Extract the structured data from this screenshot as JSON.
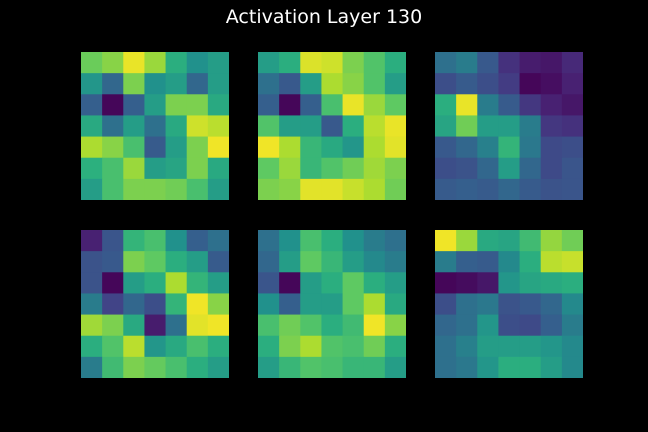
{
  "chart_data": {
    "type": "heatmap",
    "title": "Activation Layer 130",
    "colormap": "viridis",
    "vmin": 0,
    "vmax": 1,
    "background": "#000000",
    "panels": [
      {
        "name": "activation-map-1",
        "values": [
          [
            0.77,
            0.82,
            0.97,
            0.85,
            0.62,
            0.5,
            0.55
          ],
          [
            0.52,
            0.4,
            0.8,
            0.5,
            0.55,
            0.4,
            0.55
          ],
          [
            0.38,
            0.02,
            0.38,
            0.55,
            0.8,
            0.8,
            0.6
          ],
          [
            0.6,
            0.42,
            0.55,
            0.42,
            0.6,
            0.93,
            0.9
          ],
          [
            0.88,
            0.82,
            0.7,
            0.36,
            0.55,
            0.8,
            0.98
          ],
          [
            0.63,
            0.7,
            0.85,
            0.55,
            0.58,
            0.8,
            0.6
          ],
          [
            0.55,
            0.7,
            0.8,
            0.8,
            0.78,
            0.7,
            0.55
          ]
        ]
      },
      {
        "name": "activation-map-2",
        "values": [
          [
            0.55,
            0.62,
            0.95,
            0.93,
            0.8,
            0.72,
            0.62
          ],
          [
            0.42,
            0.35,
            0.55,
            0.88,
            0.82,
            0.72,
            0.55
          ],
          [
            0.38,
            0.02,
            0.38,
            0.7,
            0.97,
            0.85,
            0.75
          ],
          [
            0.72,
            0.55,
            0.55,
            0.35,
            0.62,
            0.9,
            0.97
          ],
          [
            0.98,
            0.88,
            0.66,
            0.6,
            0.52,
            0.88,
            0.96
          ],
          [
            0.75,
            0.85,
            0.66,
            0.72,
            0.78,
            0.86,
            0.8
          ],
          [
            0.8,
            0.82,
            0.96,
            0.96,
            0.92,
            0.88,
            0.78
          ]
        ]
      },
      {
        "name": "activation-map-3",
        "values": [
          [
            0.42,
            0.45,
            0.35,
            0.18,
            0.1,
            0.08,
            0.15
          ],
          [
            0.3,
            0.36,
            0.3,
            0.22,
            0.02,
            0.05,
            0.12
          ],
          [
            0.62,
            0.97,
            0.45,
            0.36,
            0.2,
            0.12,
            0.08
          ],
          [
            0.58,
            0.78,
            0.55,
            0.55,
            0.45,
            0.2,
            0.18
          ],
          [
            0.35,
            0.4,
            0.46,
            0.65,
            0.44,
            0.28,
            0.3
          ],
          [
            0.3,
            0.32,
            0.4,
            0.55,
            0.4,
            0.28,
            0.33
          ],
          [
            0.36,
            0.38,
            0.36,
            0.4,
            0.36,
            0.32,
            0.33
          ]
        ]
      },
      {
        "name": "activation-map-4",
        "values": [
          [
            0.12,
            0.33,
            0.65,
            0.7,
            0.5,
            0.38,
            0.42
          ],
          [
            0.32,
            0.35,
            0.8,
            0.75,
            0.62,
            0.55,
            0.36
          ],
          [
            0.32,
            0.02,
            0.55,
            0.62,
            0.88,
            0.65,
            0.55
          ],
          [
            0.45,
            0.25,
            0.4,
            0.3,
            0.65,
            0.98,
            0.82
          ],
          [
            0.86,
            0.8,
            0.6,
            0.1,
            0.42,
            0.96,
            0.98
          ],
          [
            0.62,
            0.72,
            0.9,
            0.52,
            0.6,
            0.7,
            0.62
          ],
          [
            0.45,
            0.68,
            0.8,
            0.76,
            0.7,
            0.62,
            0.55
          ]
        ]
      },
      {
        "name": "activation-map-5",
        "values": [
          [
            0.42,
            0.5,
            0.7,
            0.62,
            0.5,
            0.45,
            0.42
          ],
          [
            0.4,
            0.55,
            0.75,
            0.66,
            0.55,
            0.48,
            0.45
          ],
          [
            0.33,
            0.02,
            0.55,
            0.62,
            0.75,
            0.62,
            0.55
          ],
          [
            0.5,
            0.38,
            0.55,
            0.55,
            0.75,
            0.88,
            0.6
          ],
          [
            0.7,
            0.78,
            0.72,
            0.62,
            0.68,
            0.98,
            0.82
          ],
          [
            0.62,
            0.8,
            0.88,
            0.72,
            0.7,
            0.78,
            0.62
          ],
          [
            0.55,
            0.66,
            0.72,
            0.7,
            0.66,
            0.66,
            0.55
          ]
        ]
      },
      {
        "name": "activation-map-6",
        "values": [
          [
            0.98,
            0.85,
            0.6,
            0.58,
            0.68,
            0.84,
            0.78
          ],
          [
            0.45,
            0.38,
            0.36,
            0.48,
            0.62,
            0.9,
            0.92
          ],
          [
            0.02,
            0.04,
            0.08,
            0.52,
            0.58,
            0.6,
            0.62
          ],
          [
            0.3,
            0.42,
            0.44,
            0.32,
            0.35,
            0.4,
            0.48
          ],
          [
            0.4,
            0.42,
            0.52,
            0.3,
            0.28,
            0.38,
            0.45
          ],
          [
            0.42,
            0.46,
            0.55,
            0.55,
            0.55,
            0.52,
            0.48
          ],
          [
            0.42,
            0.44,
            0.52,
            0.62,
            0.62,
            0.55,
            0.48
          ]
        ]
      }
    ]
  }
}
